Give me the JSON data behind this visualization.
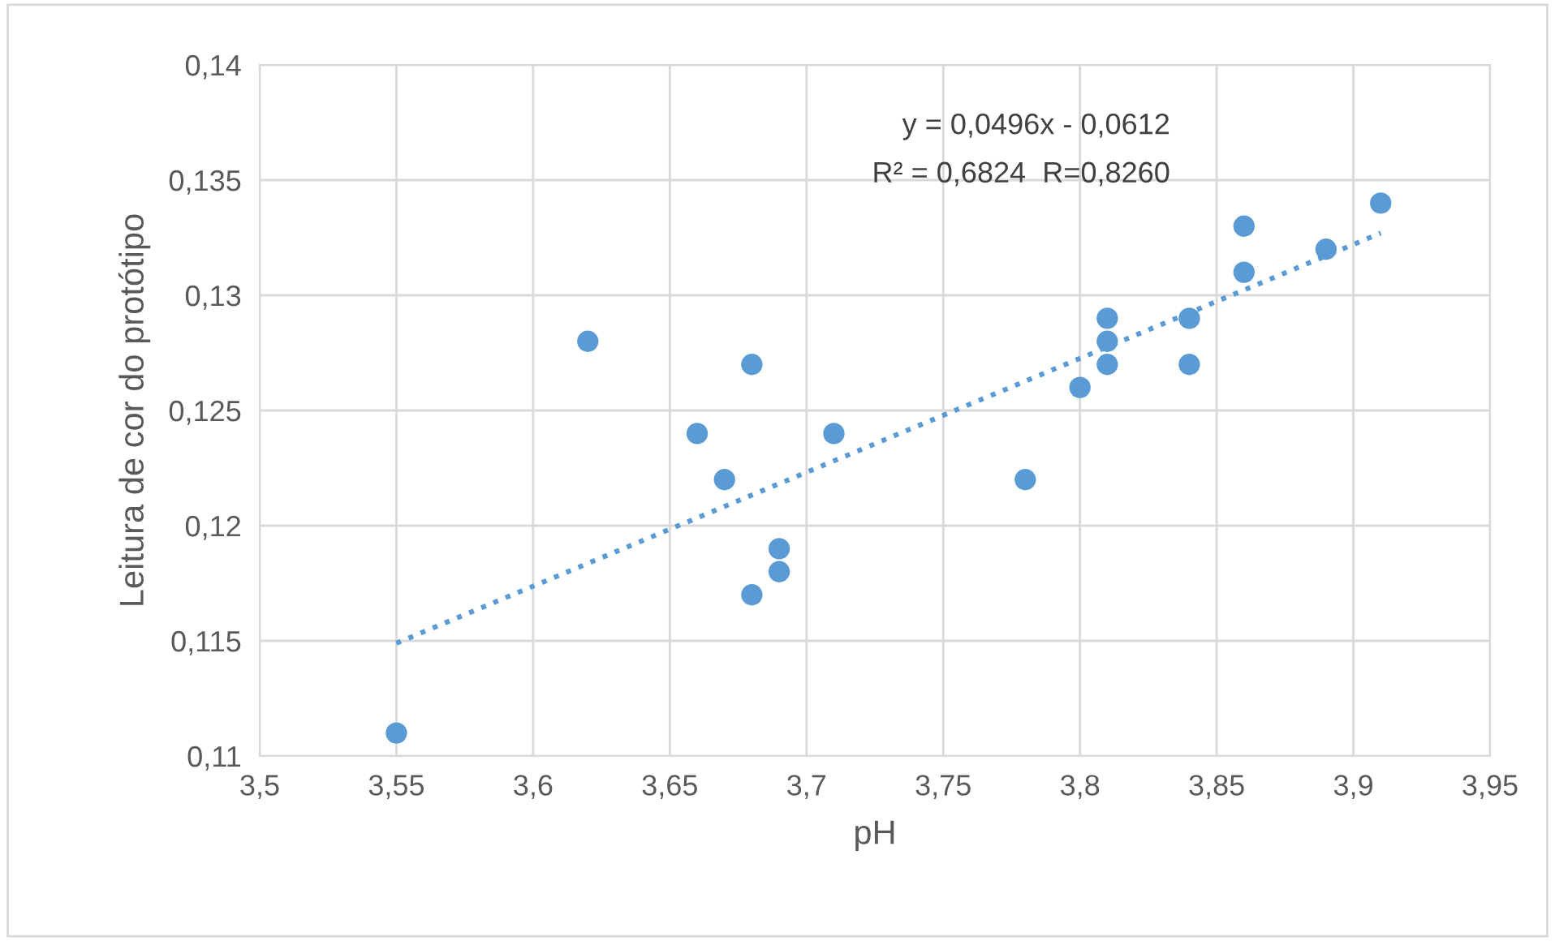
{
  "chart_data": {
    "type": "scatter",
    "xlabel": "pH",
    "ylabel": "Leitura de cor do protótipo",
    "xlim": [
      3.5,
      3.95
    ],
    "xticks": [
      {
        "value": 3.5,
        "label": "3,5"
      },
      {
        "value": 3.55,
        "label": "3,55"
      },
      {
        "value": 3.6,
        "label": "3,6"
      },
      {
        "value": 3.65,
        "label": "3,65"
      },
      {
        "value": 3.7,
        "label": "3,7"
      },
      {
        "value": 3.75,
        "label": "3,75"
      },
      {
        "value": 3.8,
        "label": "3,8"
      },
      {
        "value": 3.85,
        "label": "3,85"
      },
      {
        "value": 3.9,
        "label": "3,9"
      },
      {
        "value": 3.95,
        "label": "3,95"
      }
    ],
    "ylim": [
      0.11,
      0.14
    ],
    "yticks": [
      {
        "value": 0.11,
        "label": "0,11"
      },
      {
        "value": 0.115,
        "label": "0,115"
      },
      {
        "value": 0.12,
        "label": "0,12"
      },
      {
        "value": 0.125,
        "label": "0,125"
      },
      {
        "value": 0.13,
        "label": "0,13"
      },
      {
        "value": 0.135,
        "label": "0,135"
      },
      {
        "value": 0.14,
        "label": "0,14"
      }
    ],
    "grid": true,
    "series": [
      {
        "marker": "circle",
        "color": "#5b9bd5",
        "x": [
          3.55,
          3.62,
          3.66,
          3.67,
          3.68,
          3.68,
          3.69,
          3.69,
          3.71,
          3.78,
          3.8,
          3.81,
          3.81,
          3.81,
          3.84,
          3.84,
          3.86,
          3.86,
          3.89,
          3.91
        ],
        "values": [
          0.111,
          0.128,
          0.124,
          0.122,
          0.127,
          0.117,
          0.119,
          0.118,
          0.124,
          0.122,
          0.126,
          0.129,
          0.128,
          0.127,
          0.129,
          0.127,
          0.133,
          0.131,
          0.132,
          0.134
        ]
      },
      {
        "type": "line",
        "marker": "none",
        "color": "#5b9bd5",
        "line_style": "dotted",
        "x": [
          3.55,
          3.91
        ],
        "values": [
          0.1149,
          0.1327
        ]
      }
    ],
    "annotations": [
      "y = 0,0496x - 0,0612",
      "R² = 0,6824  R=0,8260"
    ]
  }
}
